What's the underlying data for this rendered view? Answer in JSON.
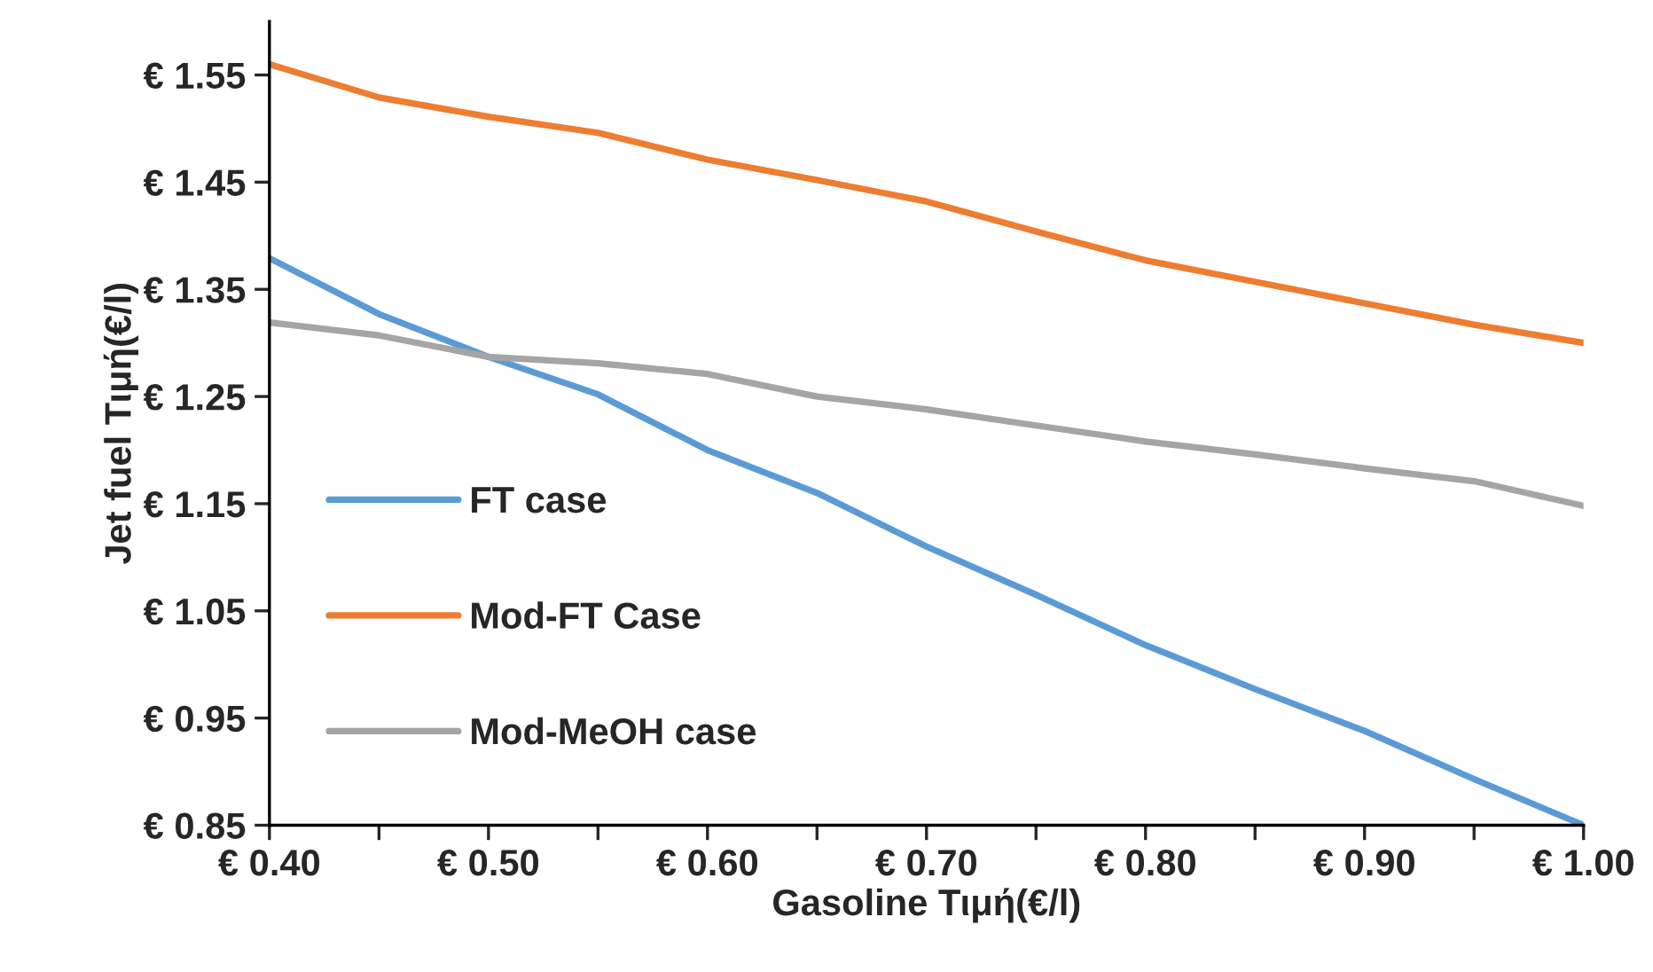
{
  "chart_data": {
    "type": "line",
    "xlabel": "Gasoline Τιμή(€/l)",
    "ylabel": "Jet fuel Τιμή(€/l)",
    "x": [
      0.4,
      0.45,
      0.5,
      0.55,
      0.6,
      0.65,
      0.7,
      0.75,
      0.8,
      0.85,
      0.9,
      0.95,
      1.0
    ],
    "series": [
      {
        "name": "FT case",
        "color": "#5b9bd5",
        "values": [
          1.379,
          1.327,
          1.287,
          1.252,
          1.2,
          1.16,
          1.11,
          1.065,
          1.018,
          0.977,
          0.938,
          0.893,
          0.85
        ]
      },
      {
        "name": "Mod-FT Case",
        "color": "#ed7d31",
        "values": [
          1.56,
          1.529,
          1.511,
          1.496,
          1.471,
          1.452,
          1.432,
          1.404,
          1.377,
          1.357,
          1.337,
          1.317,
          1.3
        ]
      },
      {
        "name": "Mod-MeOH case",
        "color": "#a5a5a5",
        "values": [
          1.319,
          1.307,
          1.287,
          1.281,
          1.271,
          1.25,
          1.238,
          1.223,
          1.208,
          1.196,
          1.183,
          1.171,
          1.148
        ]
      }
    ],
    "xlim": [
      0.4,
      1.0
    ],
    "xticks": [
      {
        "value": 0.4,
        "label": "€ 0.40"
      },
      {
        "value": 0.45,
        "label": null
      },
      {
        "value": 0.5,
        "label": "€ 0.50"
      },
      {
        "value": 0.55,
        "label": null
      },
      {
        "value": 0.6,
        "label": "€ 0.60"
      },
      {
        "value": 0.65,
        "label": null
      },
      {
        "value": 0.7,
        "label": "€ 0.70"
      },
      {
        "value": 0.75,
        "label": null
      },
      {
        "value": 0.8,
        "label": "€ 0.80"
      },
      {
        "value": 0.85,
        "label": null
      },
      {
        "value": 0.9,
        "label": "€ 0.90"
      },
      {
        "value": 0.95,
        "label": null
      },
      {
        "value": 1.0,
        "label": "€ 1.00"
      }
    ],
    "ylim": [
      0.85,
      1.6
    ],
    "yticks": [
      {
        "value": 0.85,
        "label": "€ 0.85"
      },
      {
        "value": 0.95,
        "label": "€ 0.95"
      },
      {
        "value": 1.05,
        "label": "€ 1.05"
      },
      {
        "value": 1.15,
        "label": "€ 1.15"
      },
      {
        "value": 1.25,
        "label": "€ 1.25"
      },
      {
        "value": 1.35,
        "label": "€ 1.35"
      },
      {
        "value": 1.45,
        "label": "€ 1.45"
      },
      {
        "value": 1.55,
        "label": "€ 1.55"
      }
    ],
    "grid": false,
    "legend": "bottom left",
    "marker": "none",
    "line_style": "solid"
  }
}
